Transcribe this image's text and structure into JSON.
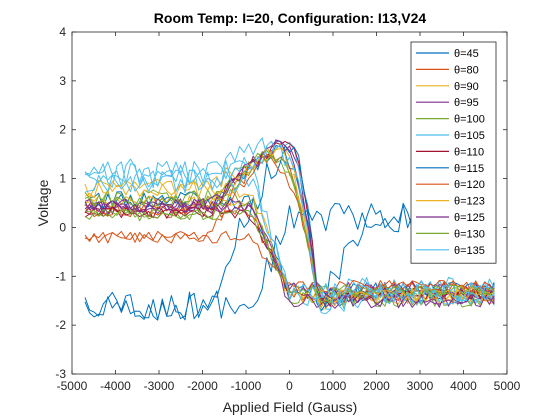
{
  "chart_data": {
    "type": "line",
    "title": "Room Temp: I=20, Configuration: I13,V24",
    "xlabel": "Applied Field (Gauss)",
    "ylabel": "Voltage",
    "xlim": [
      -5000,
      5000
    ],
    "ylim": [
      -3,
      4
    ],
    "xticks": [
      -5000,
      -4000,
      -3000,
      -2000,
      -1000,
      0,
      1000,
      2000,
      3000,
      4000,
      5000
    ],
    "yticks": [
      -3,
      -2,
      -1,
      0,
      1,
      2,
      3,
      4
    ],
    "x_domain": [
      -4700,
      4700
    ],
    "legend_position": "top-right",
    "grid": false,
    "legend_prefix": "θ=",
    "series": [
      {
        "name": "45",
        "color": "#0072BD",
        "base_left": 0.55,
        "peak_x": -300,
        "peak_y": 1.55,
        "base_right": -1.3,
        "noise": 0.18
      },
      {
        "name": "80",
        "color": "#D95319",
        "base_left": 0.35,
        "peak_x": -450,
        "peak_y": 1.45,
        "base_right": -1.35,
        "noise": 0.15
      },
      {
        "name": "90",
        "color": "#EDB120",
        "base_left": 0.5,
        "peak_x": -350,
        "peak_y": 1.6,
        "base_right": -1.4,
        "noise": 0.15
      },
      {
        "name": "95",
        "color": "#7E2F8E",
        "base_left": 0.4,
        "peak_x": -250,
        "peak_y": 1.75,
        "base_right": -1.25,
        "noise": 0.15
      },
      {
        "name": "100",
        "color": "#77AC30",
        "base_left": 0.6,
        "peak_x": -500,
        "peak_y": 1.5,
        "base_right": -1.45,
        "noise": 0.18
      },
      {
        "name": "105",
        "color": "#4DBEEE",
        "base_left": 1.1,
        "peak_x": -200,
        "peak_y": 1.85,
        "base_right": -1.3,
        "noise": 0.3
      },
      {
        "name": "110",
        "color": "#A2142F",
        "base_left": 0.3,
        "peak_x": -150,
        "peak_y": 1.8,
        "base_right": -1.35,
        "noise": 0.12
      },
      {
        "name": "115",
        "color": "#0072BD",
        "base_left": -1.6,
        "peak_x": -100,
        "peak_y": 1.7,
        "base_right": 0.2,
        "noise": 0.3
      },
      {
        "name": "120",
        "color": "#D95319",
        "base_left": -0.2,
        "peak_x": -600,
        "peak_y": 1.4,
        "base_right": -1.2,
        "noise": 0.12
      },
      {
        "name": "123",
        "color": "#EDB120",
        "base_left": 0.8,
        "peak_x": -400,
        "peak_y": 1.55,
        "base_right": -1.4,
        "noise": 0.2
      },
      {
        "name": "125",
        "color": "#7E2F8E",
        "base_left": 0.45,
        "peak_x": -300,
        "peak_y": 1.65,
        "base_right": -1.5,
        "noise": 0.15
      },
      {
        "name": "130",
        "color": "#77AC30",
        "base_left": 0.25,
        "peak_x": -550,
        "peak_y": 1.5,
        "base_right": -1.3,
        "noise": 0.12
      },
      {
        "name": "135",
        "color": "#4DBEEE",
        "base_left": 0.95,
        "peak_x": -350,
        "peak_y": 1.6,
        "base_right": -1.35,
        "noise": 0.25
      }
    ]
  }
}
